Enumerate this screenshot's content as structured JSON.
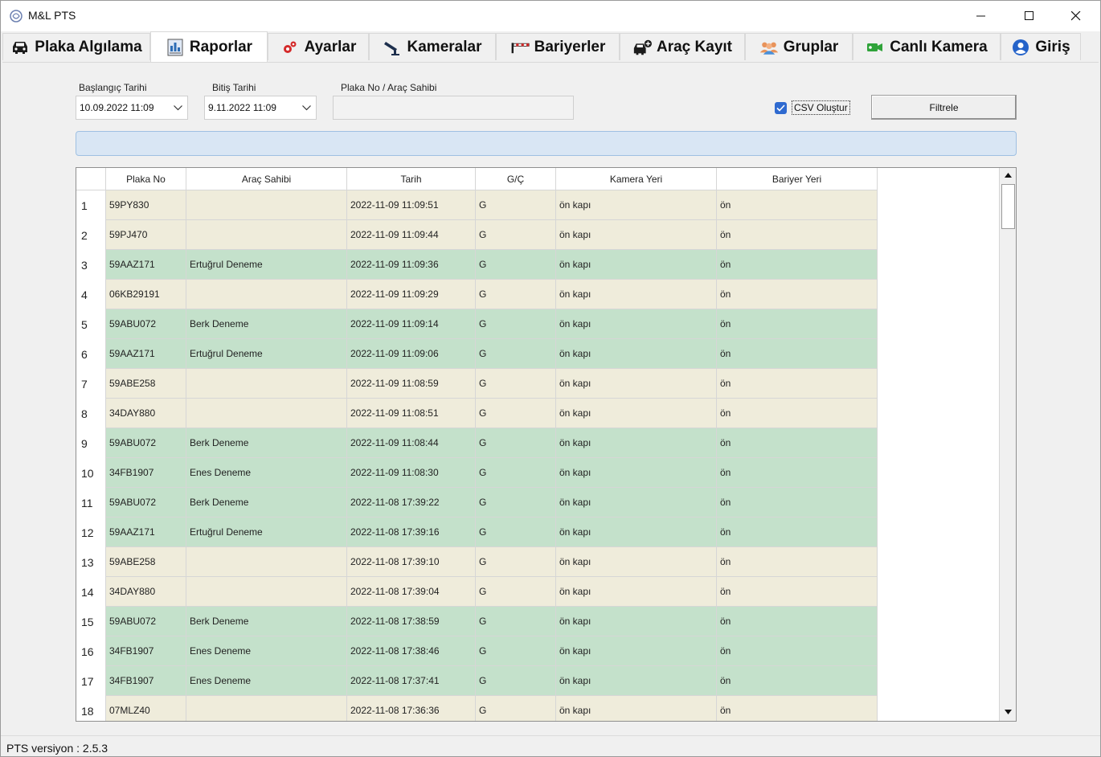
{
  "window": {
    "title": "M&L PTS",
    "controls": {
      "minimize": "minimize-icon",
      "maximize": "maximize-icon",
      "close": "close-icon"
    }
  },
  "tabs": [
    {
      "label": "Plaka Algılama",
      "icon": "car-icon",
      "active": false
    },
    {
      "label": "Raporlar",
      "icon": "report-icon",
      "active": true
    },
    {
      "label": "Ayarlar",
      "icon": "gears-icon",
      "active": false
    },
    {
      "label": "Kameralar",
      "icon": "camera-icon",
      "active": false
    },
    {
      "label": "Bariyerler",
      "icon": "barrier-icon",
      "active": false
    },
    {
      "label": "Araç Kayıt",
      "icon": "car-add-icon",
      "active": false
    },
    {
      "label": "Gruplar",
      "icon": "group-icon",
      "active": false
    },
    {
      "label": "Canlı Kamera",
      "icon": "video-camera-icon",
      "active": false
    },
    {
      "label": "Giriş",
      "icon": "user-icon",
      "active": false
    }
  ],
  "filters": {
    "start_label": "Başlangıç Tarihi",
    "start_value": "10.09.2022 11:09",
    "end_label": "Bitiş Tarihi",
    "end_value": "9.11.2022 11:09",
    "plate_label": "Plaka No / Araç Sahibi",
    "plate_value": "",
    "csv_label": "CSV Oluştur",
    "csv_checked": true,
    "filter_button": "Filtrele"
  },
  "table": {
    "columns": [
      "Plaka No",
      "Araç Sahibi",
      "Tarih",
      "G/Ç",
      "Kamera Yeri",
      "Bariyer Yeri"
    ],
    "rows": [
      {
        "n": "1",
        "plate": "59PY830",
        "owner": "",
        "date": "2022-11-09 11:09:51",
        "io": "G",
        "camera": "ön kapı",
        "barrier": "ön",
        "status": "unregistered"
      },
      {
        "n": "2",
        "plate": "59PJ470",
        "owner": "",
        "date": "2022-11-09 11:09:44",
        "io": "G",
        "camera": "ön kapı",
        "barrier": "ön",
        "status": "unregistered"
      },
      {
        "n": "3",
        "plate": "59AAZ171",
        "owner": "Ertuğrul Deneme",
        "date": "2022-11-09 11:09:36",
        "io": "G",
        "camera": "ön kapı",
        "barrier": "ön",
        "status": "registered"
      },
      {
        "n": "4",
        "plate": "06KB29191",
        "owner": "",
        "date": "2022-11-09 11:09:29",
        "io": "G",
        "camera": "ön kapı",
        "barrier": "ön",
        "status": "unregistered"
      },
      {
        "n": "5",
        "plate": "59ABU072",
        "owner": "Berk Deneme",
        "date": "2022-11-09 11:09:14",
        "io": "G",
        "camera": "ön kapı",
        "barrier": "ön",
        "status": "registered"
      },
      {
        "n": "6",
        "plate": "59AAZ171",
        "owner": "Ertuğrul Deneme",
        "date": "2022-11-09 11:09:06",
        "io": "G",
        "camera": "ön kapı",
        "barrier": "ön",
        "status": "registered"
      },
      {
        "n": "7",
        "plate": "59ABE258",
        "owner": "",
        "date": "2022-11-09 11:08:59",
        "io": "G",
        "camera": "ön kapı",
        "barrier": "ön",
        "status": "unregistered"
      },
      {
        "n": "8",
        "plate": "34DAY880",
        "owner": "",
        "date": "2022-11-09 11:08:51",
        "io": "G",
        "camera": "ön kapı",
        "barrier": "ön",
        "status": "unregistered"
      },
      {
        "n": "9",
        "plate": "59ABU072",
        "owner": "Berk Deneme",
        "date": "2022-11-09 11:08:44",
        "io": "G",
        "camera": "ön kapı",
        "barrier": "ön",
        "status": "registered"
      },
      {
        "n": "10",
        "plate": "34FB1907",
        "owner": "Enes Deneme",
        "date": "2022-11-09 11:08:30",
        "io": "G",
        "camera": "ön kapı",
        "barrier": "ön",
        "status": "registered"
      },
      {
        "n": "11",
        "plate": "59ABU072",
        "owner": "Berk Deneme",
        "date": "2022-11-08 17:39:22",
        "io": "G",
        "camera": "ön kapı",
        "barrier": "ön",
        "status": "registered"
      },
      {
        "n": "12",
        "plate": "59AAZ171",
        "owner": "Ertuğrul Deneme",
        "date": "2022-11-08 17:39:16",
        "io": "G",
        "camera": "ön kapı",
        "barrier": "ön",
        "status": "registered"
      },
      {
        "n": "13",
        "plate": "59ABE258",
        "owner": "",
        "date": "2022-11-08 17:39:10",
        "io": "G",
        "camera": "ön kapı",
        "barrier": "ön",
        "status": "unregistered"
      },
      {
        "n": "14",
        "plate": "34DAY880",
        "owner": "",
        "date": "2022-11-08 17:39:04",
        "io": "G",
        "camera": "ön kapı",
        "barrier": "ön",
        "status": "unregistered"
      },
      {
        "n": "15",
        "plate": "59ABU072",
        "owner": "Berk Deneme",
        "date": "2022-11-08 17:38:59",
        "io": "G",
        "camera": "ön kapı",
        "barrier": "ön",
        "status": "registered"
      },
      {
        "n": "16",
        "plate": "34FB1907",
        "owner": "Enes Deneme",
        "date": "2022-11-08 17:38:46",
        "io": "G",
        "camera": "ön kapı",
        "barrier": "ön",
        "status": "registered"
      },
      {
        "n": "17",
        "plate": "34FB1907",
        "owner": "Enes Deneme",
        "date": "2022-11-08 17:37:41",
        "io": "G",
        "camera": "ön kapı",
        "barrier": "ön",
        "status": "registered"
      },
      {
        "n": "18",
        "plate": "07MLZ40",
        "owner": "",
        "date": "2022-11-08 17:36:36",
        "io": "G",
        "camera": "ön kapı",
        "barrier": "ön",
        "status": "unregistered"
      }
    ]
  },
  "colors": {
    "registered_row": "#c4e1cb",
    "unregistered_row": "#efecdb",
    "progress_fill": "#d9e6f4",
    "checkbox_accent": "#2f6ad0"
  },
  "status": {
    "version": "PTS versiyon : 2.5.3"
  }
}
